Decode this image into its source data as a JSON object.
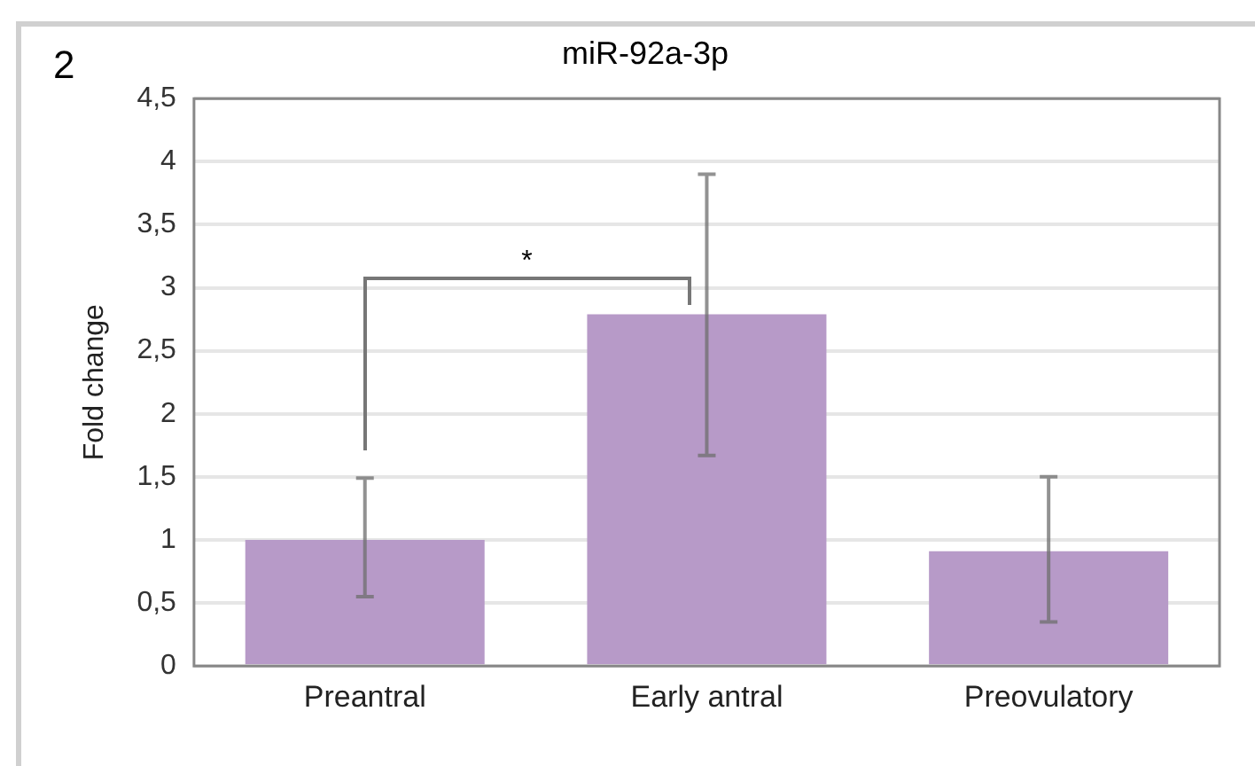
{
  "chart_data": {
    "type": "bar",
    "title": "miR-92a-3p",
    "ylabel": "Fold change",
    "categories": [
      "Preantral",
      "Early antral",
      "Preovulatory"
    ],
    "values": [
      1.0,
      2.79,
      0.91
    ],
    "errors": [
      [
        0.55,
        1.49
      ],
      [
        1.67,
        3.9
      ],
      [
        0.35,
        1.5
      ]
    ],
    "color": "#b79ac8",
    "ylim": [
      0,
      4.5
    ],
    "yticks": [
      0,
      {
        "value": 0.5,
        "label": "0,5"
      },
      1,
      {
        "value": 1.5,
        "label": "1,5"
      },
      2,
      {
        "value": 2.5,
        "label": "2,5"
      },
      3,
      {
        "value": 3.5,
        "label": "3,5"
      },
      4,
      {
        "value": 4.5,
        "label": "4,5"
      }
    ],
    "grid": "y",
    "legend": false,
    "annotations": [
      "2",
      "*"
    ]
  }
}
